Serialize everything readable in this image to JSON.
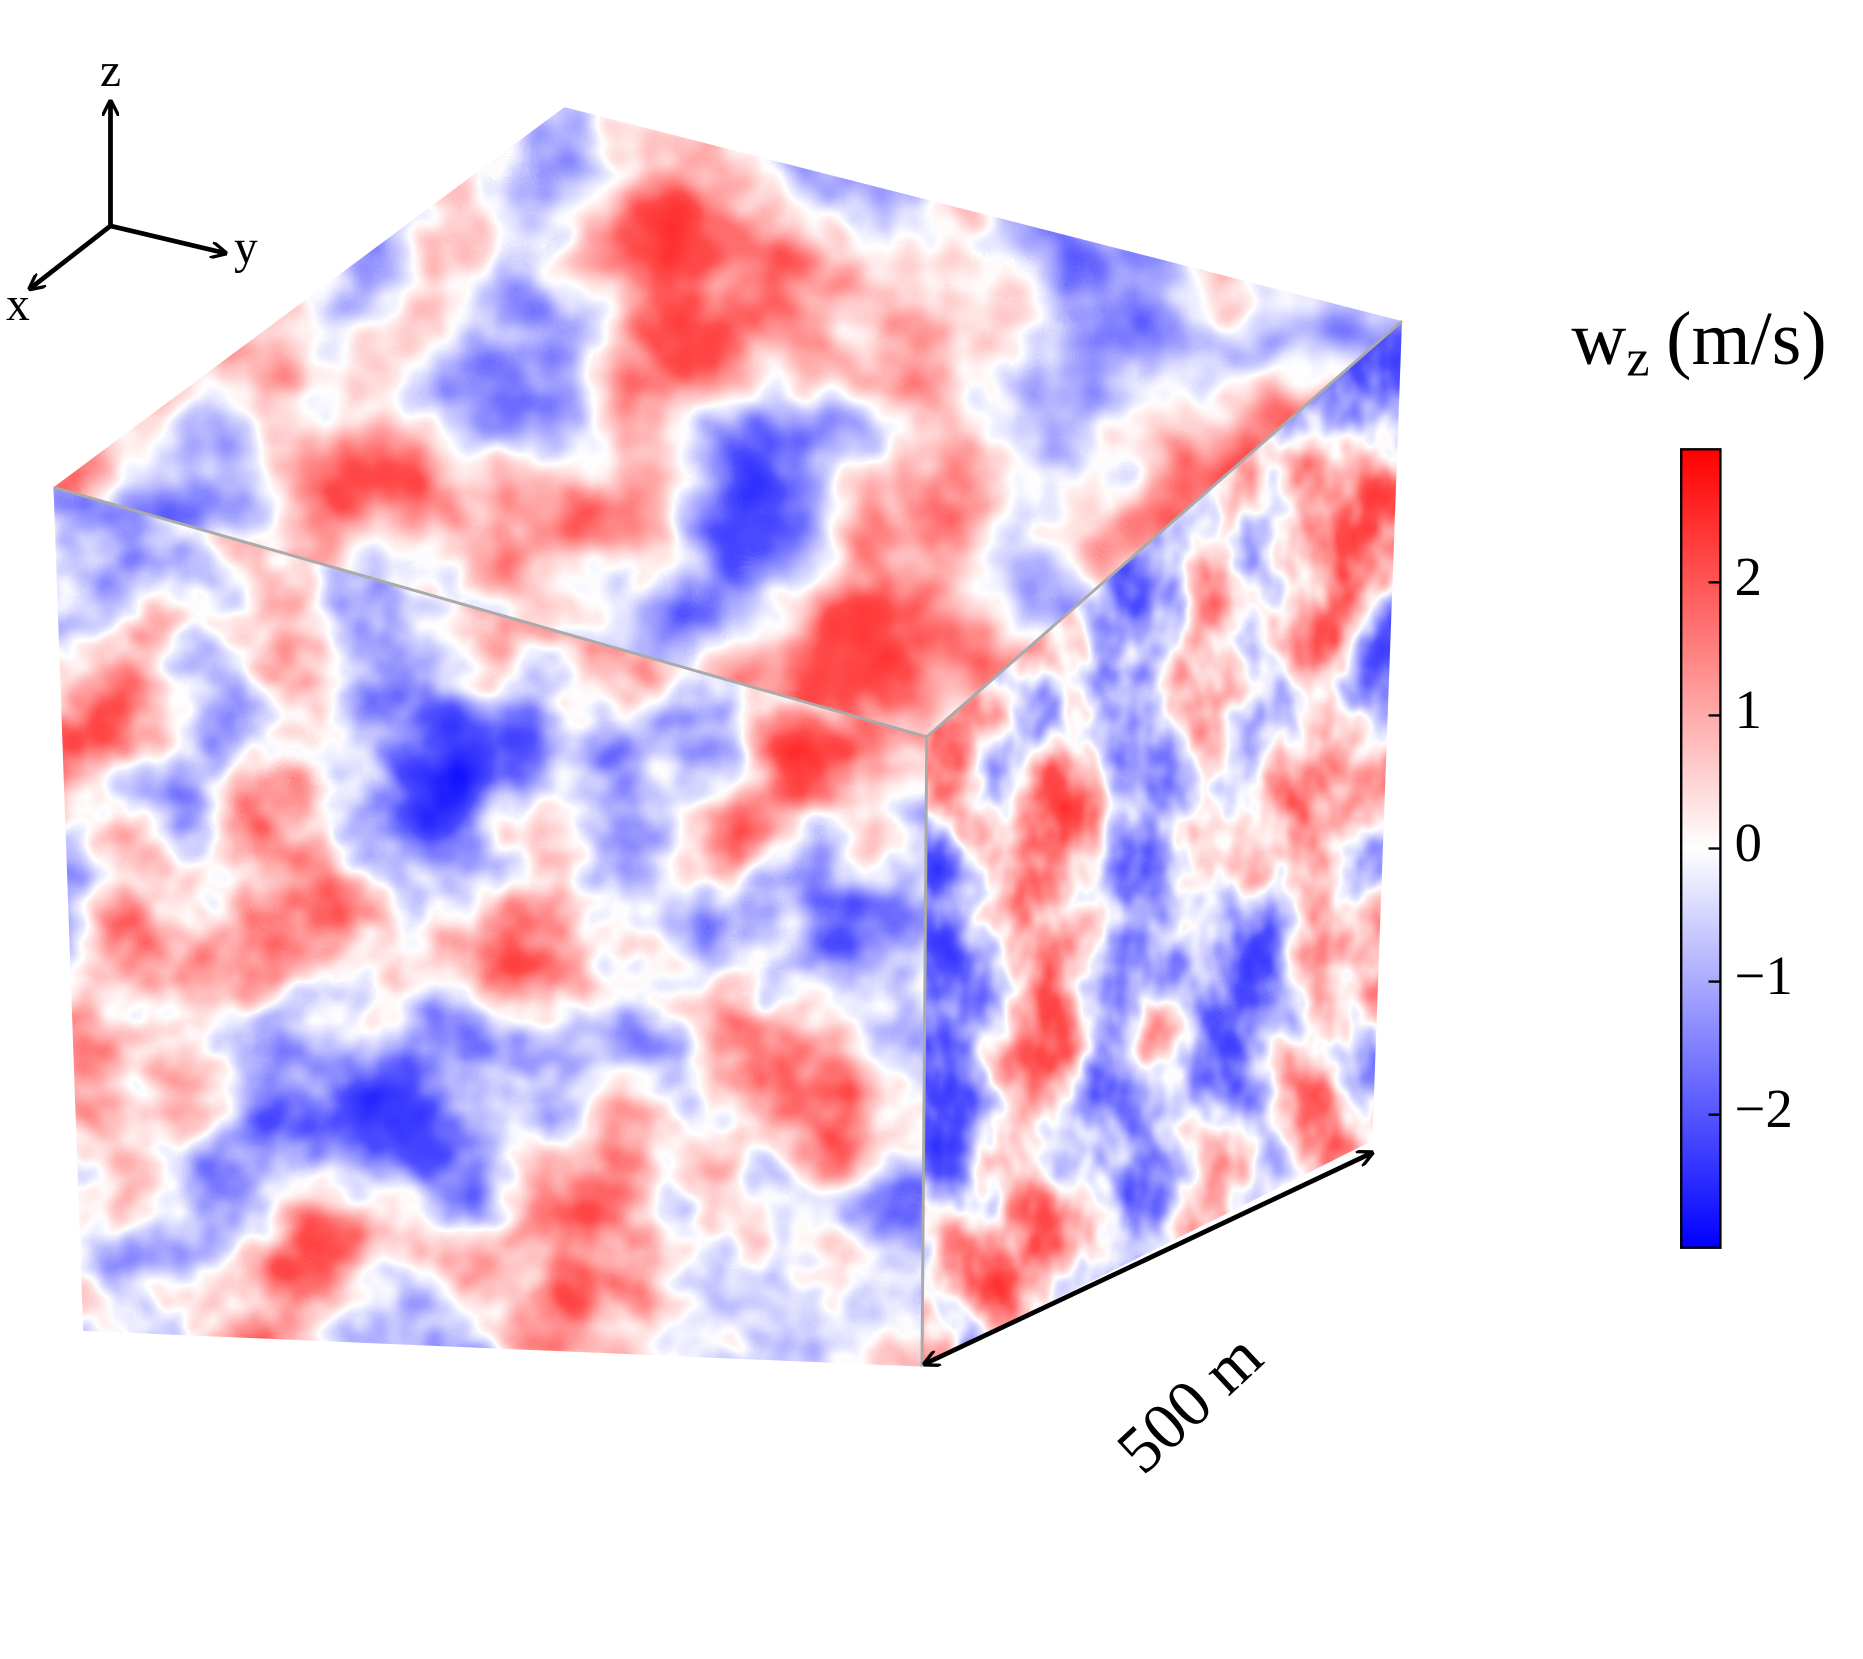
{
  "axes_triad": {
    "z": "z",
    "y": "y",
    "x": "x"
  },
  "scale_bar": {
    "label": "500 m"
  },
  "colorbar": {
    "title_base": "w",
    "title_sub": "z",
    "title_unit": "(m/s)",
    "lim": [
      -3,
      3
    ],
    "ticks": [
      {
        "value": -2,
        "label": "−2"
      },
      {
        "value": -1,
        "label": "−1"
      },
      0,
      1,
      2
    ],
    "colors": [
      "#0000ff",
      "#ffffff",
      "#ff0000"
    ]
  }
}
